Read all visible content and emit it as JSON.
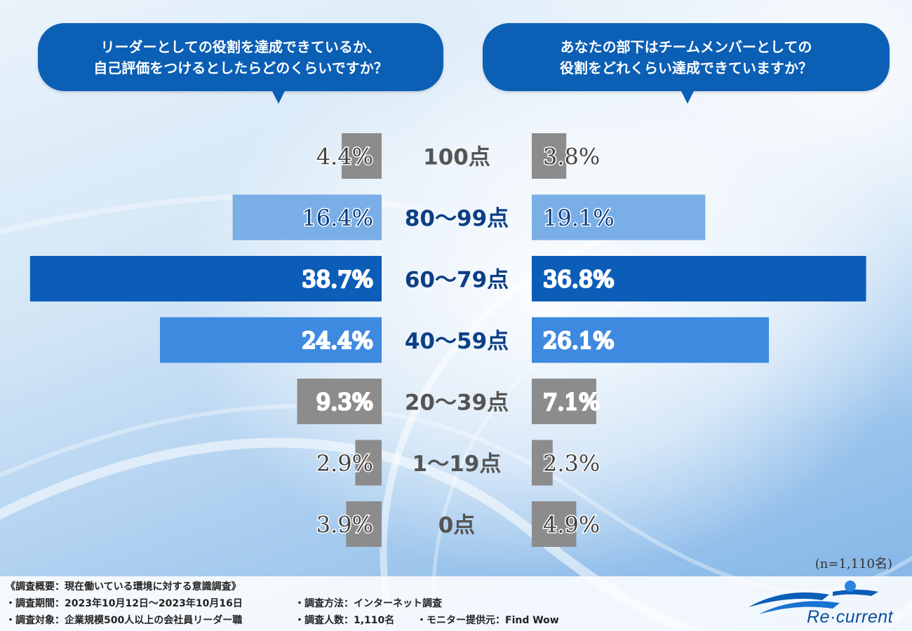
{
  "header": {
    "left_question": "リーダーとしての役割を達成できているか、\n自己評価をつけるとしたらどのくらいですか？",
    "right_question": "あなたの部下はチームメンバーとしての\n役割をどれくらい達成できていますか？"
  },
  "chart_data": {
    "type": "bar",
    "orientation": "horizontal-butterfly",
    "categories": [
      "100点",
      "80～99点",
      "60～79点",
      "40～59点",
      "20～39点",
      "1～19点",
      "0点"
    ],
    "series": [
      {
        "values": [
          4.4,
          16.4,
          38.7,
          24.4,
          9.3,
          2.9,
          3.9
        ],
        "value_labels": [
          "4.4%",
          "16.4%",
          "38.7%",
          "24.4%",
          "9.3%",
          "2.9%",
          "3.9%"
        ]
      },
      {
        "values": [
          3.8,
          19.1,
          36.8,
          26.1,
          7.1,
          2.3,
          4.9
        ],
        "value_labels": [
          "3.8%",
          "19.1%",
          "36.8%",
          "26.1%",
          "7.1%",
          "2.3%",
          "4.9%"
        ]
      }
    ],
    "unit": "%",
    "bar_colors": [
      "#8c8c8c",
      "#7aaee6",
      "#0b5db7",
      "#3d8ae0",
      "#8c8c8c",
      "#8c8c8c",
      "#8c8c8c"
    ],
    "label_colors": [
      "#555555",
      "#0b3f86",
      "#0b3f86",
      "#0b3f86",
      "#555555",
      "#555555",
      "#555555"
    ],
    "pct_text_colors": [
      "#444444",
      "#0b3f86",
      "#ffffff",
      "#ffffff",
      "#ffffff",
      "#444444",
      "#444444"
    ],
    "sample_note": "(n=1,110名)"
  },
  "footer": {
    "survey_title": "《調査概要：現在働いている環境に対する意識調査》",
    "period": "・調査期間：2023年10月12日～2023年10月16日",
    "method": "・調査方法：インターネット調査",
    "target": "・調査対象：企業規模500人以上の会社員リーダー職",
    "count": "・調査人数：1,110名",
    "provider": "・モニター提供元：Find Wow"
  },
  "logo": {
    "text": "Re·current"
  }
}
